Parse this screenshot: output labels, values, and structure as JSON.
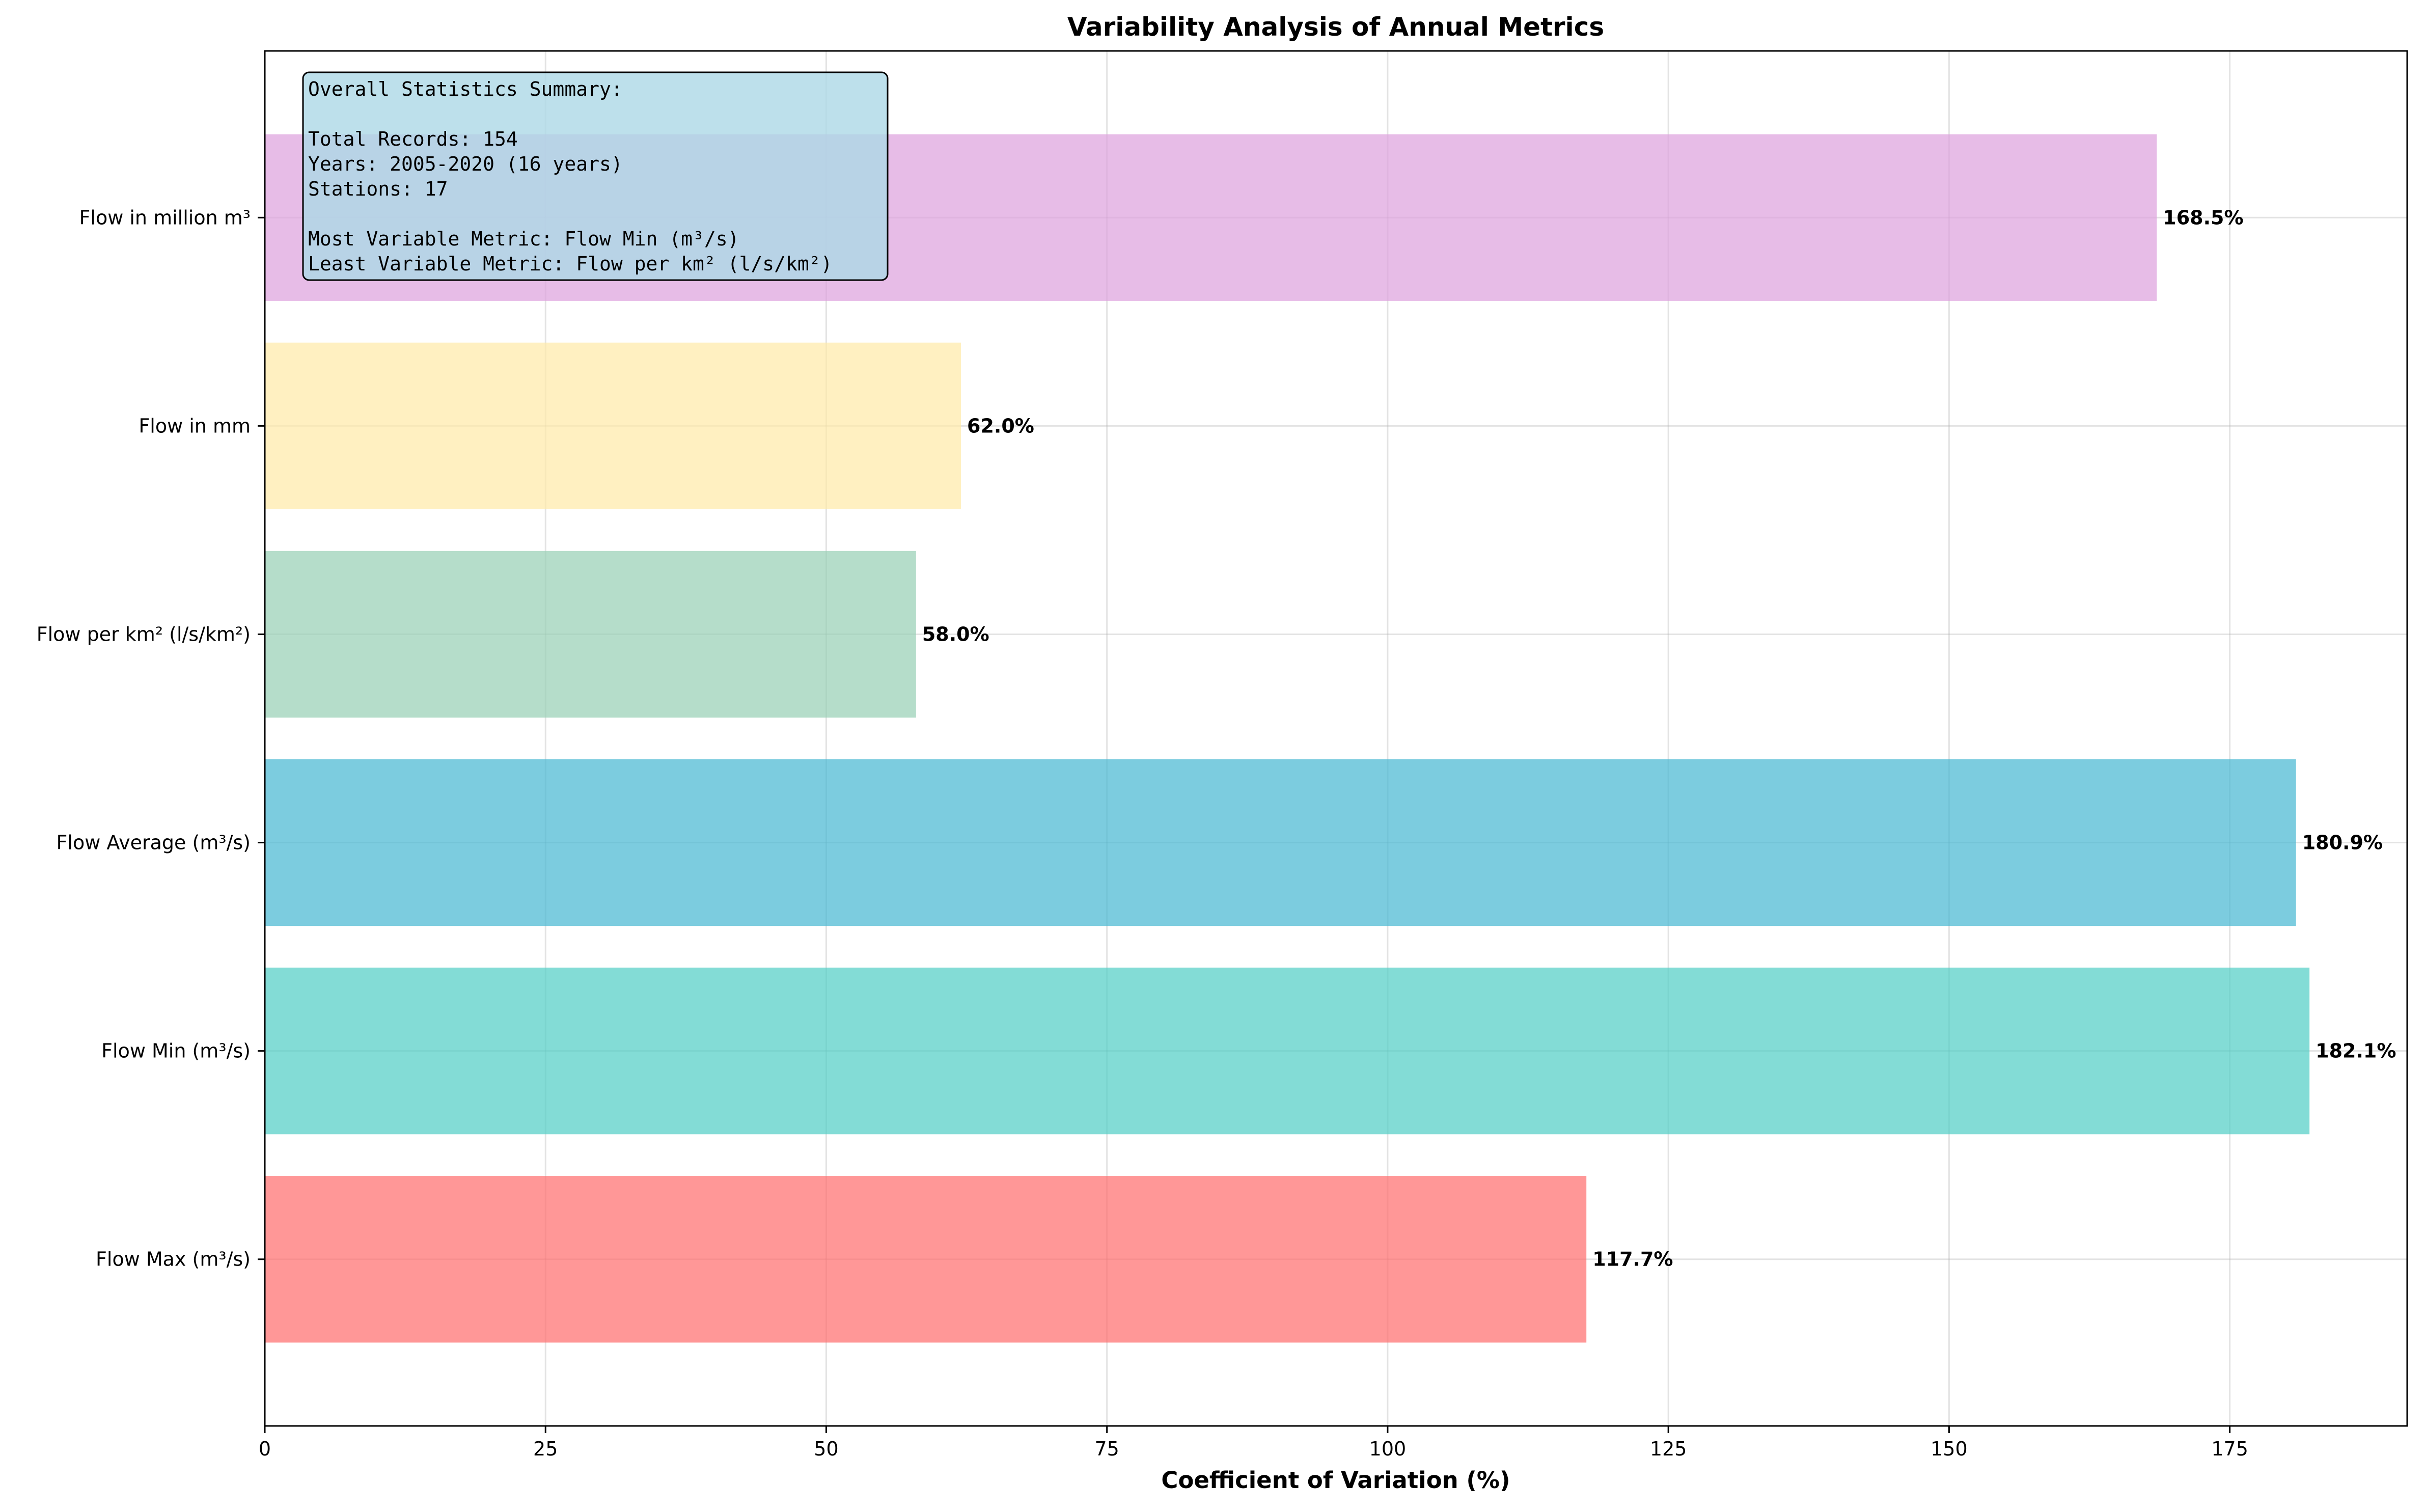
{
  "chart_data": {
    "type": "bar",
    "orientation": "horizontal",
    "title": "Variability Analysis of Annual Metrics",
    "xlabel": "Coefficient of Variation (%)",
    "ylabel": "",
    "xlim": [
      0,
      190.8
    ],
    "xticks": [
      0,
      25,
      50,
      75,
      100,
      125,
      150,
      175
    ],
    "grid": true,
    "categories": [
      "Flow Max (m³/s)",
      "Flow Min (m³/s)",
      "Flow Average (m³/s)",
      "Flow per km² (l/s/km²)",
      "Flow in mm",
      "Flow in million m³"
    ],
    "values": [
      117.7,
      182.1,
      180.9,
      58.0,
      62.0,
      168.5
    ],
    "value_labels": [
      "117.7%",
      "182.1%",
      "180.9%",
      "58.0%",
      "62.0%",
      "168.5%"
    ],
    "colors": [
      "#ff6b6b",
      "#4ecdc4",
      "#45b7d1",
      "#96ceb4",
      "#ffeaa7",
      "#dda0dd"
    ],
    "bar_opacity": 0.7
  },
  "summary": {
    "lines": [
      "Overall Statistics Summary:",
      "",
      "Total Records: 154",
      "Years: 2005-2020 (16 years)",
      "Stations: 17",
      "",
      "Most Variable Metric: Flow Min (m³/s)",
      "Least Variable Metric: Flow per km² (l/s/km²)"
    ],
    "box_color": "#add8e6"
  }
}
